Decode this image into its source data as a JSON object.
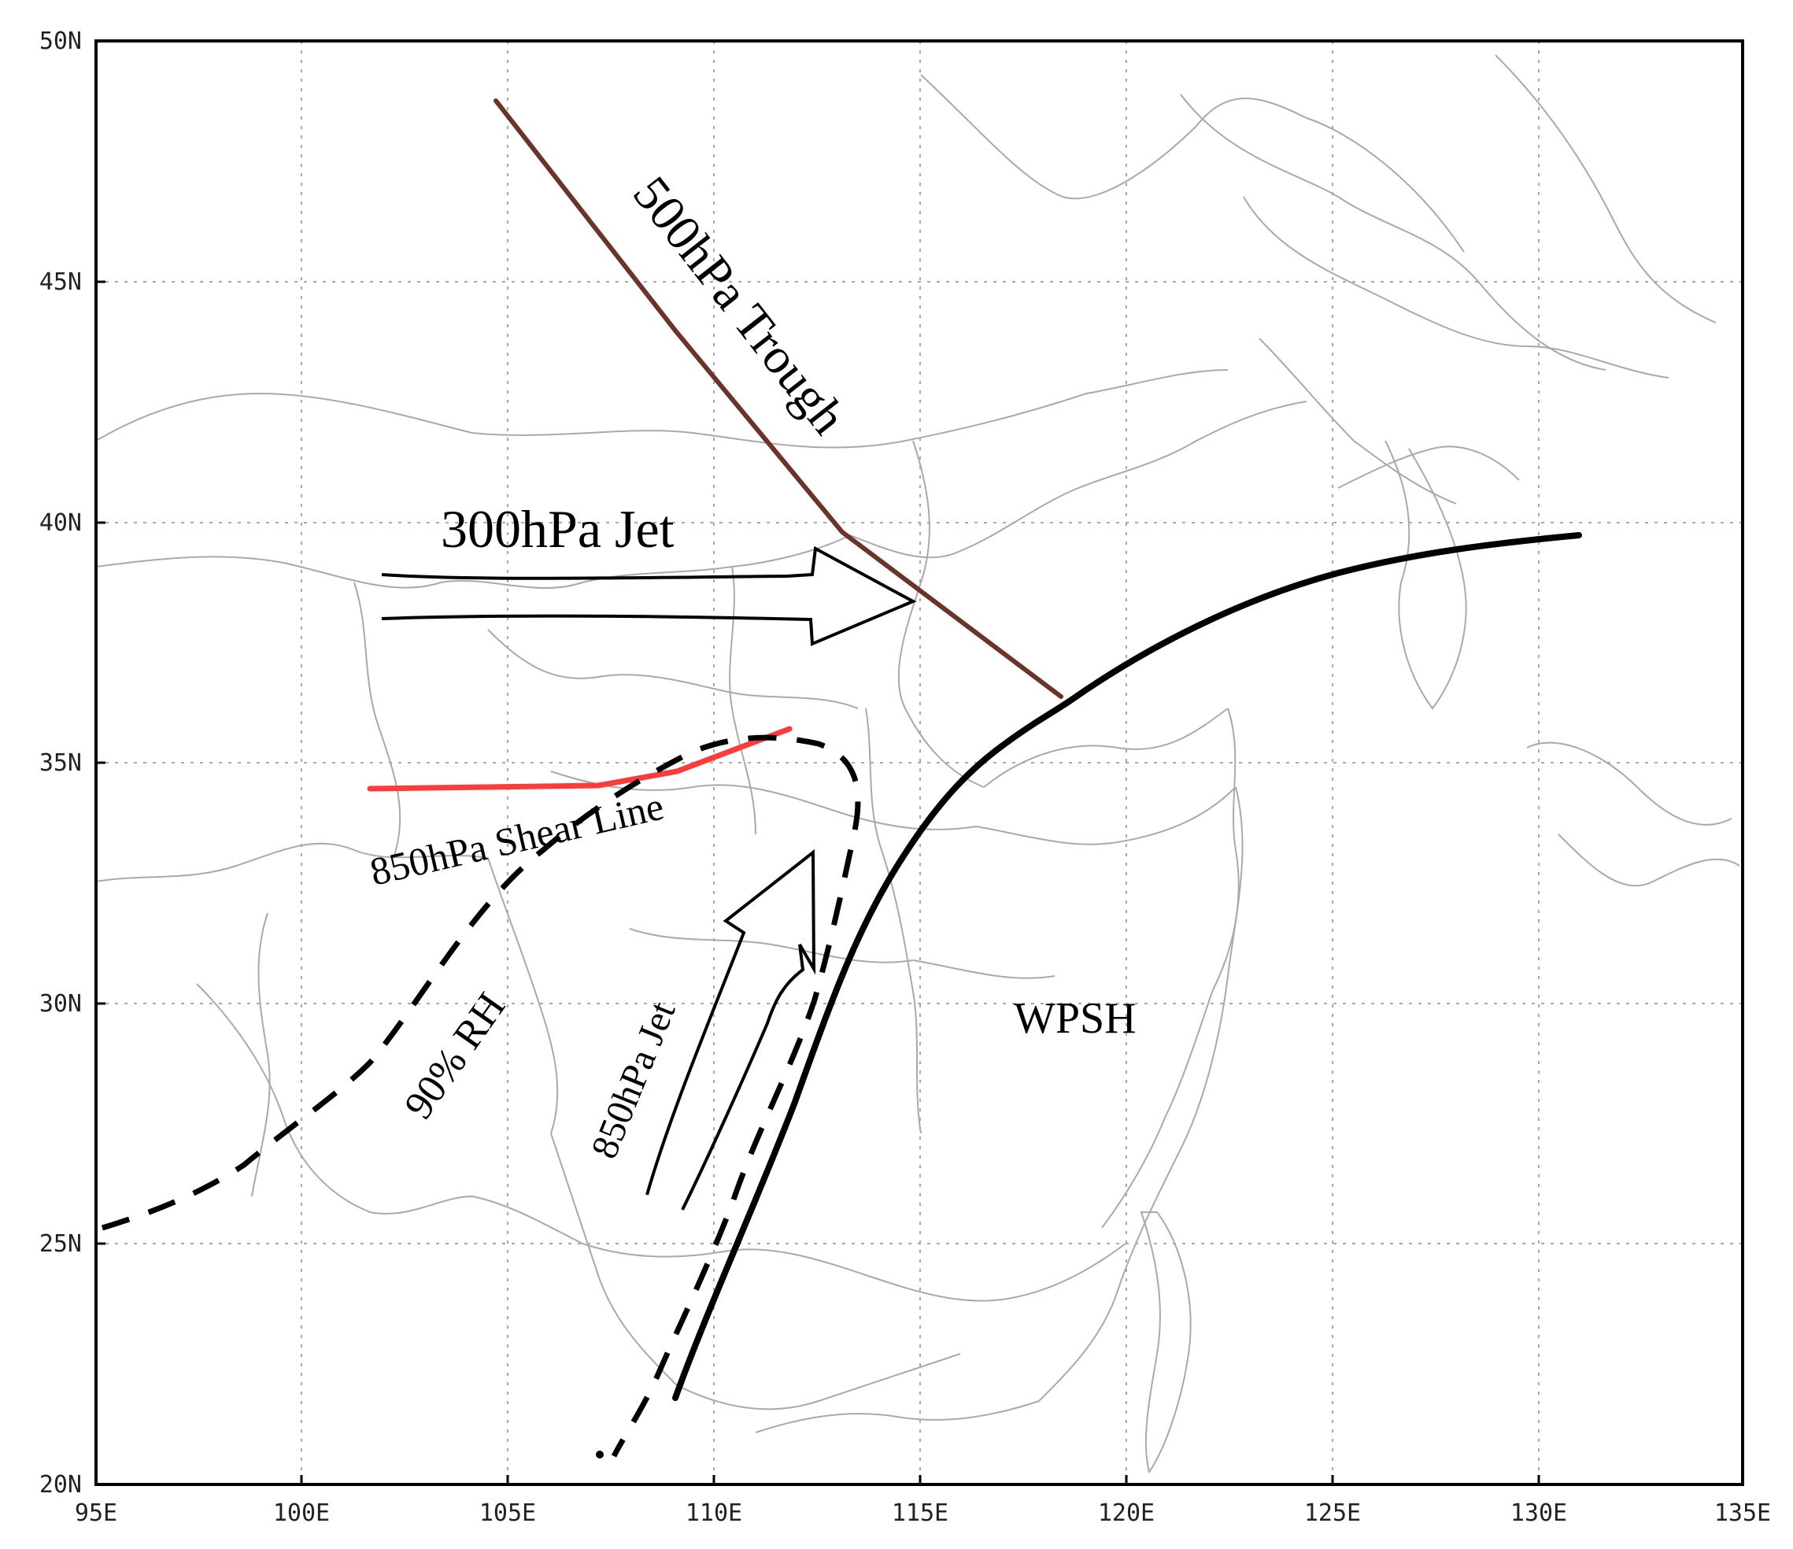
{
  "map": {
    "x_ticks": [
      "95E",
      "100E",
      "105E",
      "110E",
      "115E",
      "120E",
      "125E",
      "130E",
      "135E"
    ],
    "y_ticks": [
      "50N",
      "45N",
      "40N",
      "35N",
      "30N",
      "25N",
      "20N"
    ],
    "labels": {
      "trough_500": "500hPa Trough",
      "jet_300": "300hPa Jet",
      "shear_850": "850hPa Shear Line",
      "rh_90": "90% RH",
      "jet_850": "850hPa Jet",
      "wpsh": "WPSH"
    },
    "colors": {
      "trough_500": "#6b3329",
      "shear_850": "#ff3b3b",
      "wpsh_boundary": "#000000",
      "rh_90": "#000000",
      "borders": "#a9a9a9"
    }
  }
}
